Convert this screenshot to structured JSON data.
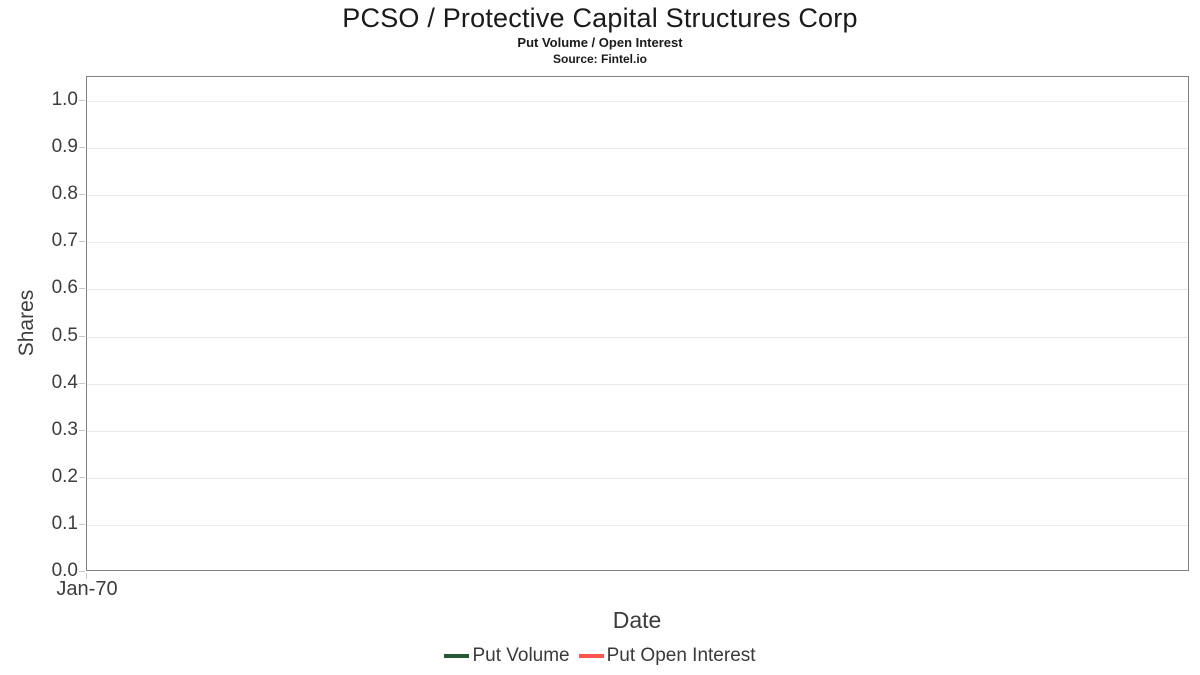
{
  "chart_data": {
    "type": "line",
    "title": "PCSO / Protective Capital Structures Corp",
    "subtitle": "Put Volume / Open Interest",
    "source": "Source: Fintel.io",
    "xlabel": "Date",
    "ylabel": "Shares",
    "x_ticks": [
      "Jan-70"
    ],
    "y_ticks": [
      "0.0",
      "0.1",
      "0.2",
      "0.3",
      "0.4",
      "0.5",
      "0.6",
      "0.7",
      "0.8",
      "0.9",
      "1.0"
    ],
    "ylim": [
      0.0,
      1.05
    ],
    "grid": true,
    "legend_position": "bottom-center",
    "series": [
      {
        "name": "Put Volume",
        "color": "#275937",
        "x": [],
        "values": []
      },
      {
        "name": "Put Open Interest",
        "color": "#f9564f",
        "x": [],
        "values": []
      }
    ],
    "colors": {
      "plot_border": "#828282",
      "gridline": "#e9e9e9",
      "tick_mark": "#c9c9c9",
      "title_text": "#1a1a1a",
      "axis_text": "#3d3d3d",
      "legend_text": "#3a3a3a"
    }
  }
}
